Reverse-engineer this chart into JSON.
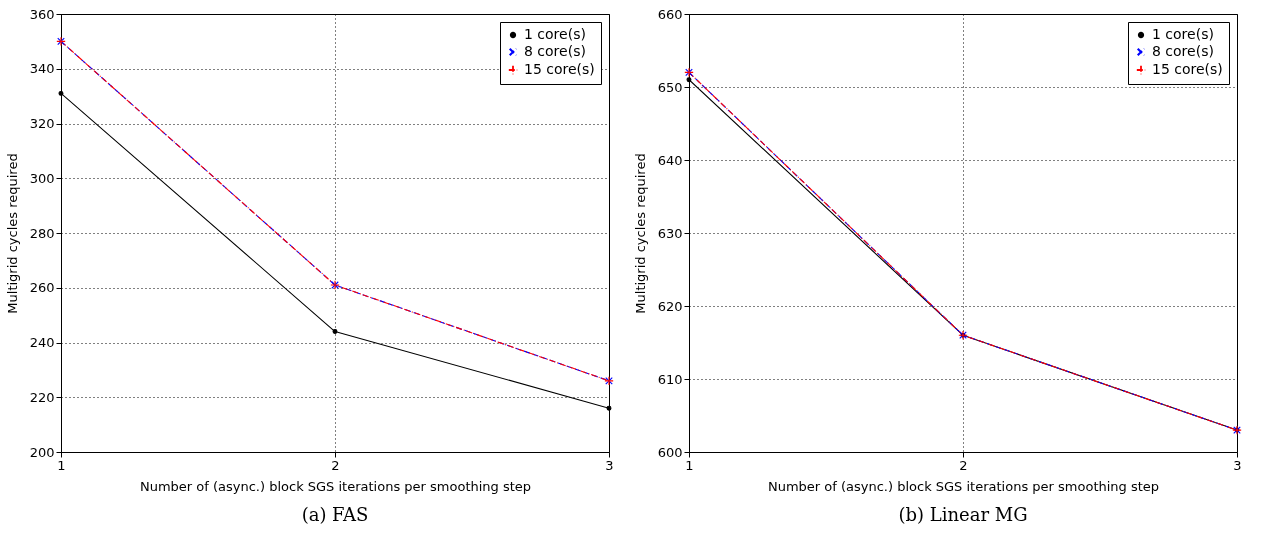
{
  "chart_data": [
    {
      "type": "line",
      "title": "(a) FAS",
      "xlabel": "Number of (async.) block SGS iterations per smoothing step",
      "ylabel": "Multigrid cycles required",
      "x": [
        1,
        2,
        3
      ],
      "xlim": [
        1,
        3
      ],
      "xticks": [
        1,
        2,
        3
      ],
      "ylim": [
        200,
        360
      ],
      "yticks": [
        200,
        220,
        240,
        260,
        280,
        300,
        320,
        340,
        360
      ],
      "grid": true,
      "legend": "top right",
      "series": [
        {
          "name": "1 core(s)",
          "color": "#000000",
          "values": [
            331,
            244,
            216
          ],
          "marker": "circle",
          "line_style": "solid"
        },
        {
          "name": "8 core(s)",
          "color": "#0000ff",
          "values": [
            350,
            261,
            226
          ],
          "marker": "x",
          "line_style": "dashed"
        },
        {
          "name": "15 core(s)",
          "color": "#ff0000",
          "values": [
            350,
            261,
            226
          ],
          "marker": "cross",
          "line_style": "dashdot"
        }
      ]
    },
    {
      "type": "line",
      "title": "(b) Linear MG",
      "xlabel": "Number of (async.) block SGS iterations per smoothing step",
      "ylabel": "Multigrid cycles required",
      "x": [
        1,
        2,
        3
      ],
      "xlim": [
        1,
        3
      ],
      "xticks": [
        1,
        2,
        3
      ],
      "ylim": [
        600,
        660
      ],
      "yticks": [
        600,
        610,
        620,
        630,
        640,
        650,
        660
      ],
      "grid": true,
      "legend": "top right",
      "series": [
        {
          "name": "1 core(s)",
          "color": "#000000",
          "values": [
            651,
            616,
            603
          ],
          "marker": "circle",
          "line_style": "solid"
        },
        {
          "name": "8 core(s)",
          "color": "#0000ff",
          "values": [
            652,
            616,
            603
          ],
          "marker": "x",
          "line_style": "dashed"
        },
        {
          "name": "15 core(s)",
          "color": "#ff0000",
          "values": [
            652,
            616,
            603
          ],
          "marker": "cross",
          "line_style": "dashdot"
        }
      ]
    }
  ]
}
